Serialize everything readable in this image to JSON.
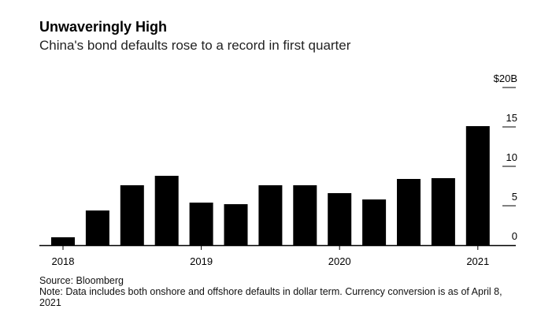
{
  "title": "Unwaveringly High",
  "subtitle": "China's bond defaults rose to a record in first quarter",
  "source": "Source: Bloomberg",
  "note": "Note: Data includes both onshore and offshore defaults in dollar term. Currency conversion is as of April 8, 2021",
  "colors": {
    "bar": "#000000",
    "axis": "#000000",
    "text": "#000000"
  },
  "chart_data": {
    "type": "bar",
    "categories": [
      "2018 Q1",
      "2018 Q2",
      "2018 Q3",
      "2018 Q4",
      "2019 Q1",
      "2019 Q2",
      "2019 Q3",
      "2019 Q4",
      "2020 Q1",
      "2020 Q2",
      "2020 Q3",
      "2020 Q4",
      "2021 Q1"
    ],
    "values": [
      1.0,
      4.4,
      7.6,
      8.8,
      5.4,
      5.2,
      7.6,
      7.6,
      6.6,
      5.8,
      8.4,
      8.5,
      15.1
    ],
    "xtick_labels": [
      "2018",
      "2019",
      "2020",
      "2021"
    ],
    "ytick_labels": [
      "0",
      "5",
      "10",
      "15",
      "$20B"
    ],
    "ytick_values": [
      0,
      5,
      10,
      15,
      20
    ],
    "ylim": [
      0,
      20
    ],
    "xlabel": "",
    "ylabel": "",
    "grid": false,
    "y_axis_side": "right"
  }
}
